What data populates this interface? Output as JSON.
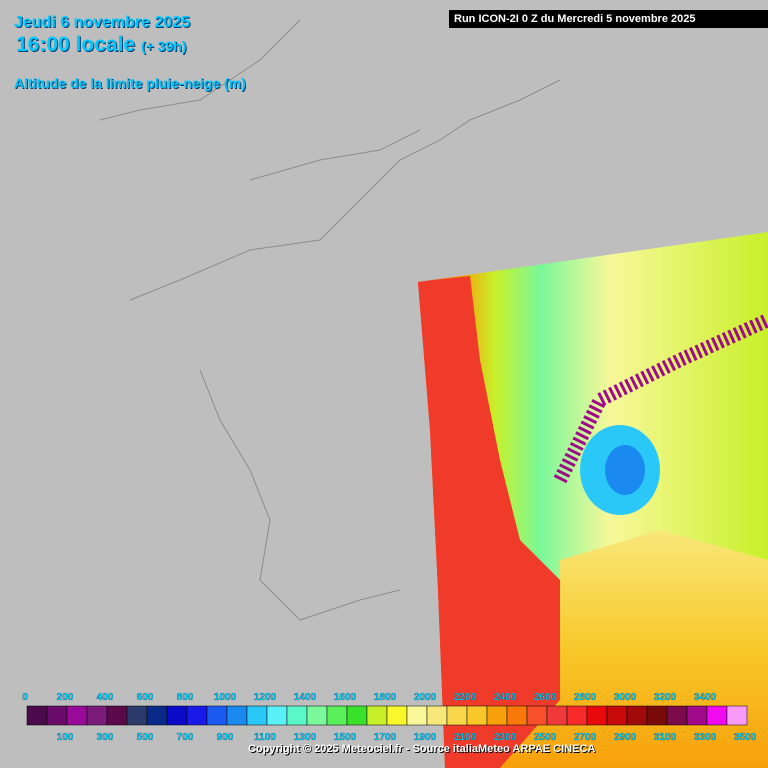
{
  "header": {
    "date": "Jeudi 6 novembre 2025",
    "time": "16:00 locale",
    "lead": "(+ 39h)",
    "parameter": "Altitude de la limite pluie-neige (m)",
    "run": "Run ICON-2I 0 Z du Mercredi 5 novembre 2025"
  },
  "legend": {
    "labels": [
      0,
      100,
      200,
      300,
      400,
      500,
      600,
      700,
      800,
      900,
      1000,
      1100,
      1200,
      1300,
      1400,
      1500,
      1600,
      1700,
      1800,
      1900,
      2000,
      2100,
      2200,
      2300,
      2400,
      2500,
      2600,
      2700,
      2800,
      2900,
      3000,
      3100,
      3200,
      3300,
      3400,
      3500
    ],
    "colors": [
      "#4b0a4b",
      "#6a0a6a",
      "#9a0a9a",
      "#7a1a7a",
      "#5a0a4a",
      "#2a3a6a",
      "#0a2a8a",
      "#0a0ac8",
      "#1a1ae8",
      "#1a5af0",
      "#1a8af0",
      "#2ac8f8",
      "#5af0f8",
      "#5af8c8",
      "#7af89a",
      "#5af05a",
      "#3ae02a",
      "#c8f02a",
      "#f8f82a",
      "#f8f89a",
      "#f8e87a",
      "#f8d84a",
      "#f8c82a",
      "#f8a00a",
      "#f8780a",
      "#f8502a",
      "#f03a3a",
      "#f82a2a",
      "#e80a0a",
      "#c80a0a",
      "#a00a0a",
      "#780a0a",
      "#7a0a4a",
      "#a00a8a",
      "#f00af0",
      "#f89af8"
    ]
  },
  "footer": {
    "copyright": "Copyright © 2025 Meteociel.fr - Source italiaMeteo ARPAE CINECA"
  }
}
